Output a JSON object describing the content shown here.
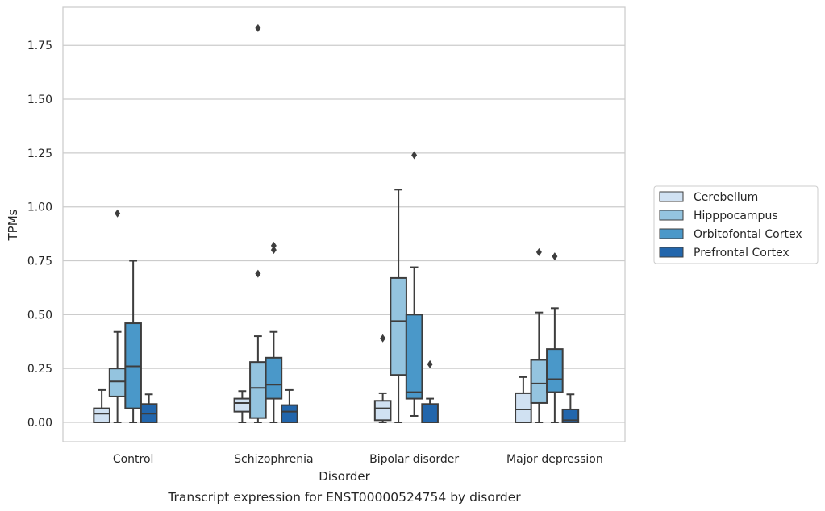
{
  "chart_data": {
    "type": "box",
    "title": "",
    "caption": "Transcript expression for ENST00000524754 by disorder",
    "xlabel": "Disorder",
    "ylabel": "TPMs",
    "ylim": [
      -0.09,
      1.93
    ],
    "yticks": [
      "0.00",
      "0.25",
      "0.50",
      "0.75",
      "1.00",
      "1.25",
      "1.50",
      "1.75"
    ],
    "grid": true,
    "legend_position": "right",
    "categories": [
      "Control",
      "Schizophrenia",
      "Bipolar disorder",
      "Major depression"
    ],
    "series": [
      {
        "name": "Cerebellum",
        "color": "#d0e1f2",
        "boxes": [
          {
            "whislo": 0.0,
            "q1": 0.0,
            "med": 0.04,
            "q3": 0.065,
            "whishi": 0.15,
            "fliers": []
          },
          {
            "whislo": 0.0,
            "q1": 0.05,
            "med": 0.09,
            "q3": 0.11,
            "whishi": 0.145,
            "fliers": []
          },
          {
            "whislo": 0.0,
            "q1": 0.01,
            "med": 0.065,
            "q3": 0.1,
            "whishi": 0.135,
            "fliers": [
              0.39
            ]
          },
          {
            "whislo": 0.0,
            "q1": 0.0,
            "med": 0.06,
            "q3": 0.135,
            "whishi": 0.21,
            "fliers": []
          }
        ]
      },
      {
        "name": "Hipppocampus",
        "color": "#94c4df",
        "boxes": [
          {
            "whislo": 0.0,
            "q1": 0.12,
            "med": 0.19,
            "q3": 0.25,
            "whishi": 0.42,
            "fliers": [
              0.97
            ]
          },
          {
            "whislo": 0.0,
            "q1": 0.02,
            "med": 0.16,
            "q3": 0.28,
            "whishi": 0.4,
            "fliers": [
              0.69,
              1.83
            ]
          },
          {
            "whislo": 0.0,
            "q1": 0.22,
            "med": 0.47,
            "q3": 0.67,
            "whishi": 1.08,
            "fliers": []
          },
          {
            "whislo": 0.0,
            "q1": 0.09,
            "med": 0.18,
            "q3": 0.29,
            "whishi": 0.51,
            "fliers": [
              0.79
            ]
          }
        ]
      },
      {
        "name": "Orbitofontal Cortex",
        "color": "#4a98c9",
        "boxes": [
          {
            "whislo": 0.0,
            "q1": 0.065,
            "med": 0.26,
            "q3": 0.46,
            "whishi": 0.75,
            "fliers": []
          },
          {
            "whislo": 0.0,
            "q1": 0.11,
            "med": 0.175,
            "q3": 0.3,
            "whishi": 0.42,
            "fliers": [
              0.8,
              0.82
            ]
          },
          {
            "whislo": 0.03,
            "q1": 0.11,
            "med": 0.14,
            "q3": 0.5,
            "whishi": 0.72,
            "fliers": [
              1.24
            ]
          },
          {
            "whislo": 0.0,
            "q1": 0.14,
            "med": 0.2,
            "q3": 0.34,
            "whishi": 0.53,
            "fliers": [
              0.77
            ]
          }
        ]
      },
      {
        "name": "Prefrontal Cortex",
        "color": "#2266ac",
        "boxes": [
          {
            "whislo": 0.0,
            "q1": 0.0,
            "med": 0.04,
            "q3": 0.085,
            "whishi": 0.13,
            "fliers": []
          },
          {
            "whislo": 0.0,
            "q1": 0.0,
            "med": 0.05,
            "q3": 0.08,
            "whishi": 0.15,
            "fliers": []
          },
          {
            "whislo": 0.0,
            "q1": 0.0,
            "med": 0.0,
            "q3": 0.085,
            "whishi": 0.11,
            "fliers": [
              0.27
            ]
          },
          {
            "whislo": 0.0,
            "q1": 0.0,
            "med": 0.01,
            "q3": 0.06,
            "whishi": 0.13,
            "fliers": []
          }
        ]
      }
    ]
  }
}
